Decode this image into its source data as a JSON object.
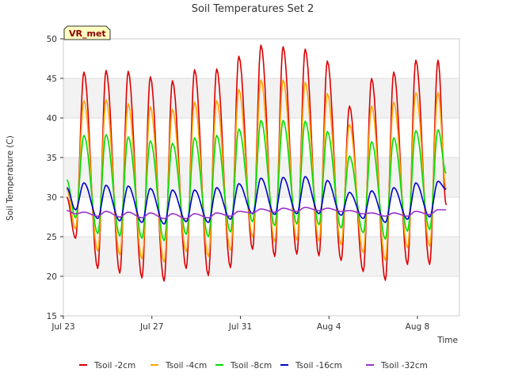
{
  "chart_data": {
    "type": "line",
    "title": "Soil Temperatures Set 2",
    "xlabel": "Time",
    "ylabel": "Soil Temperature (C)",
    "badge": "VR_met",
    "ylim": [
      15,
      50
    ],
    "yticks": [
      15,
      20,
      25,
      30,
      35,
      40,
      45,
      50
    ],
    "xlim_days": [
      0,
      17.9
    ],
    "xticks": [
      {
        "day": 0,
        "label": "Jul 23"
      },
      {
        "day": 4,
        "label": "Jul 27"
      },
      {
        "day": 8,
        "label": "Jul 31"
      },
      {
        "day": 12,
        "label": "Aug 4"
      },
      {
        "day": 16,
        "label": "Aug 8"
      }
    ],
    "grid": true,
    "legend_position": "bottom",
    "daily_peaks": [
      {
        "day": 0.93,
        "t2": 45.8,
        "t4": 42.2,
        "t8": 37.8,
        "t16": 31.8,
        "t32": 28.1
      },
      {
        "day": 1.93,
        "t2": 46.0,
        "t4": 42.3,
        "t8": 37.9,
        "t16": 31.5,
        "t32": 28.2
      },
      {
        "day": 2.93,
        "t2": 45.9,
        "t4": 41.8,
        "t8": 37.6,
        "t16": 31.4,
        "t32": 28.1
      },
      {
        "day": 3.93,
        "t2": 45.2,
        "t4": 41.4,
        "t8": 37.1,
        "t16": 31.1,
        "t32": 28.0
      },
      {
        "day": 4.93,
        "t2": 44.7,
        "t4": 41.1,
        "t8": 36.8,
        "t16": 30.9,
        "t32": 27.9
      },
      {
        "day": 5.93,
        "t2": 46.1,
        "t4": 42.0,
        "t8": 37.5,
        "t16": 30.9,
        "t32": 27.9
      },
      {
        "day": 6.93,
        "t2": 46.2,
        "t4": 42.2,
        "t8": 37.8,
        "t16": 31.2,
        "t32": 28.0
      },
      {
        "day": 7.93,
        "t2": 47.8,
        "t4": 43.6,
        "t8": 38.6,
        "t16": 31.7,
        "t32": 28.2
      },
      {
        "day": 8.93,
        "t2": 49.2,
        "t4": 44.8,
        "t8": 39.7,
        "t16": 32.4,
        "t32": 28.5
      },
      {
        "day": 9.93,
        "t2": 49.0,
        "t4": 44.8,
        "t8": 39.7,
        "t16": 32.5,
        "t32": 28.6
      },
      {
        "day": 10.93,
        "t2": 48.7,
        "t4": 44.5,
        "t8": 39.6,
        "t16": 32.6,
        "t32": 28.7
      },
      {
        "day": 11.93,
        "t2": 47.2,
        "t4": 43.1,
        "t8": 38.3,
        "t16": 32.1,
        "t32": 28.6
      },
      {
        "day": 12.93,
        "t2": 41.5,
        "t4": 39.2,
        "t8": 35.2,
        "t16": 30.6,
        "t32": 28.3
      },
      {
        "day": 13.93,
        "t2": 45.0,
        "t4": 41.5,
        "t8": 37.0,
        "t16": 30.8,
        "t32": 28.0
      },
      {
        "day": 14.93,
        "t2": 45.8,
        "t4": 42.0,
        "t8": 37.5,
        "t16": 31.2,
        "t32": 28.0
      },
      {
        "day": 15.93,
        "t2": 47.3,
        "t4": 43.2,
        "t8": 38.4,
        "t16": 31.8,
        "t32": 28.2
      },
      {
        "day": 16.93,
        "t2": 47.3,
        "t4": 43.2,
        "t8": 38.5,
        "t16": 32.0,
        "t32": 28.4
      }
    ],
    "daily_troughs": [
      {
        "day": 0.55,
        "t2": 24.8,
        "t4": 26.0,
        "t8": 27.4,
        "t16": 28.4,
        "t32": 27.9
      },
      {
        "day": 1.55,
        "t2": 21.0,
        "t4": 23.2,
        "t8": 25.4,
        "t16": 27.3,
        "t32": 27.6
      },
      {
        "day": 2.55,
        "t2": 20.4,
        "t4": 22.7,
        "t8": 25.1,
        "t16": 27.0,
        "t32": 27.5
      },
      {
        "day": 3.55,
        "t2": 19.8,
        "t4": 22.2,
        "t8": 24.8,
        "t16": 26.8,
        "t32": 27.4
      },
      {
        "day": 4.55,
        "t2": 19.4,
        "t4": 21.8,
        "t8": 24.5,
        "t16": 26.6,
        "t32": 27.3
      },
      {
        "day": 5.55,
        "t2": 21.0,
        "t4": 23.1,
        "t8": 25.3,
        "t16": 26.9,
        "t32": 27.3
      },
      {
        "day": 6.55,
        "t2": 20.1,
        "t4": 22.5,
        "t8": 25.0,
        "t16": 26.8,
        "t32": 27.4
      },
      {
        "day": 7.55,
        "t2": 21.1,
        "t4": 23.3,
        "t8": 25.6,
        "t16": 27.2,
        "t32": 27.6
      },
      {
        "day": 8.55,
        "t2": 23.4,
        "t4": 25.0,
        "t8": 26.9,
        "t16": 27.9,
        "t32": 28.0
      },
      {
        "day": 9.55,
        "t2": 22.5,
        "t4": 24.4,
        "t8": 26.4,
        "t16": 27.8,
        "t32": 28.1
      },
      {
        "day": 10.55,
        "t2": 22.8,
        "t4": 24.6,
        "t8": 26.6,
        "t16": 27.9,
        "t32": 28.2
      },
      {
        "day": 11.55,
        "t2": 22.6,
        "t4": 24.5,
        "t8": 26.5,
        "t16": 27.9,
        "t32": 28.3
      },
      {
        "day": 12.55,
        "t2": 22.0,
        "t4": 24.0,
        "t8": 26.1,
        "t16": 27.7,
        "t32": 28.2
      },
      {
        "day": 13.55,
        "t2": 20.6,
        "t4": 23.0,
        "t8": 25.5,
        "t16": 27.3,
        "t32": 27.9
      },
      {
        "day": 14.55,
        "t2": 19.5,
        "t4": 22.0,
        "t8": 24.7,
        "t16": 26.8,
        "t32": 27.6
      },
      {
        "day": 15.55,
        "t2": 21.5,
        "t4": 23.6,
        "t8": 25.7,
        "t16": 27.2,
        "t32": 27.6
      },
      {
        "day": 16.55,
        "t2": 21.5,
        "t4": 23.8,
        "t8": 25.9,
        "t16": 27.5,
        "t32": 27.8
      }
    ],
    "series": [
      {
        "key": "t2",
        "name": "Tsoil -2cm",
        "color": "#dd0000",
        "start": 30.0,
        "end": 29.0
      },
      {
        "key": "t4",
        "name": "Tsoil -4cm",
        "color": "#ffa500",
        "start": 31.0,
        "end": 31.0
      },
      {
        "key": "t8",
        "name": "Tsoil -8cm",
        "color": "#00dd00",
        "start": 32.2,
        "end": 33.0
      },
      {
        "key": "t16",
        "name": "Tsoil -16cm",
        "color": "#0000cc",
        "start": 31.2,
        "end": 31.0
      },
      {
        "key": "t32",
        "name": "Tsoil -32cm",
        "color": "#9932cc",
        "start": 28.3,
        "end": 28.4
      }
    ]
  }
}
